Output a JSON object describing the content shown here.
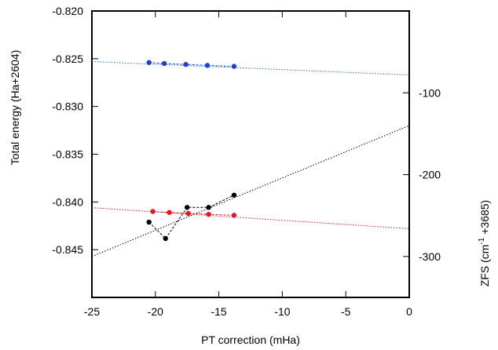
{
  "chart_data": {
    "type": "scatter",
    "xlabel": "PT correction (mHa)",
    "ylabel_left": "Total energy (Ha+2604)",
    "ylabel_right": [
      "ZFS (cm",
      "-1",
      " +3685)"
    ],
    "xlim": [
      -25,
      0
    ],
    "ylim_left": [
      -0.85,
      -0.82
    ],
    "ylim_right": [
      -350,
      0
    ],
    "x_ticks": [
      -25,
      -20,
      -15,
      -10,
      -5,
      0
    ],
    "x_tick_labels": [
      "-25",
      "-20",
      "-15",
      "-10",
      "-5",
      "0"
    ],
    "y_left_ticks": [
      -0.82,
      -0.825,
      -0.83,
      -0.835,
      -0.84,
      -0.845
    ],
    "y_left_tick_labels": [
      "-0.820",
      "-0.825",
      "-0.830",
      "-0.835",
      "-0.840",
      "-0.845"
    ],
    "y_right_ticks": [
      -100,
      -200,
      -300
    ],
    "y_right_tick_labels": [
      "-100",
      "-200",
      "-300"
    ],
    "series": [
      {
        "axis": "left",
        "color": "#1a3fe0",
        "line_color": "#1a6fd0",
        "x": [
          -20.5,
          -19.3,
          -17.6,
          -15.9,
          -13.8
        ],
        "y": [
          -0.8254,
          -0.8255,
          -0.8256,
          -0.8257,
          -0.8258
        ],
        "fit": {
          "x": [
            -25,
            0
          ],
          "y": [
            -0.8253,
            -0.8267
          ]
        }
      },
      {
        "axis": "left",
        "color": "#e8141e",
        "line_color": "#e81818",
        "x": [
          -20.2,
          -18.9,
          -17.4,
          -15.8,
          -13.8
        ],
        "y": [
          -0.841,
          -0.8411,
          -0.8412,
          -0.8413,
          -0.8414
        ],
        "fit": {
          "x": [
            -25,
            0
          ],
          "y": [
            -0.8406,
            -0.8428
          ]
        }
      },
      {
        "axis": "right",
        "color": "#000000",
        "line_color": "#000000",
        "x": [
          -20.5,
          -19.2,
          -17.5,
          -15.8,
          -13.8
        ],
        "y": [
          -258,
          -278,
          -240,
          -240,
          -225
        ],
        "fit": {
          "x": [
            -25,
            0
          ],
          "y": [
            -300,
            -140
          ]
        }
      }
    ]
  }
}
